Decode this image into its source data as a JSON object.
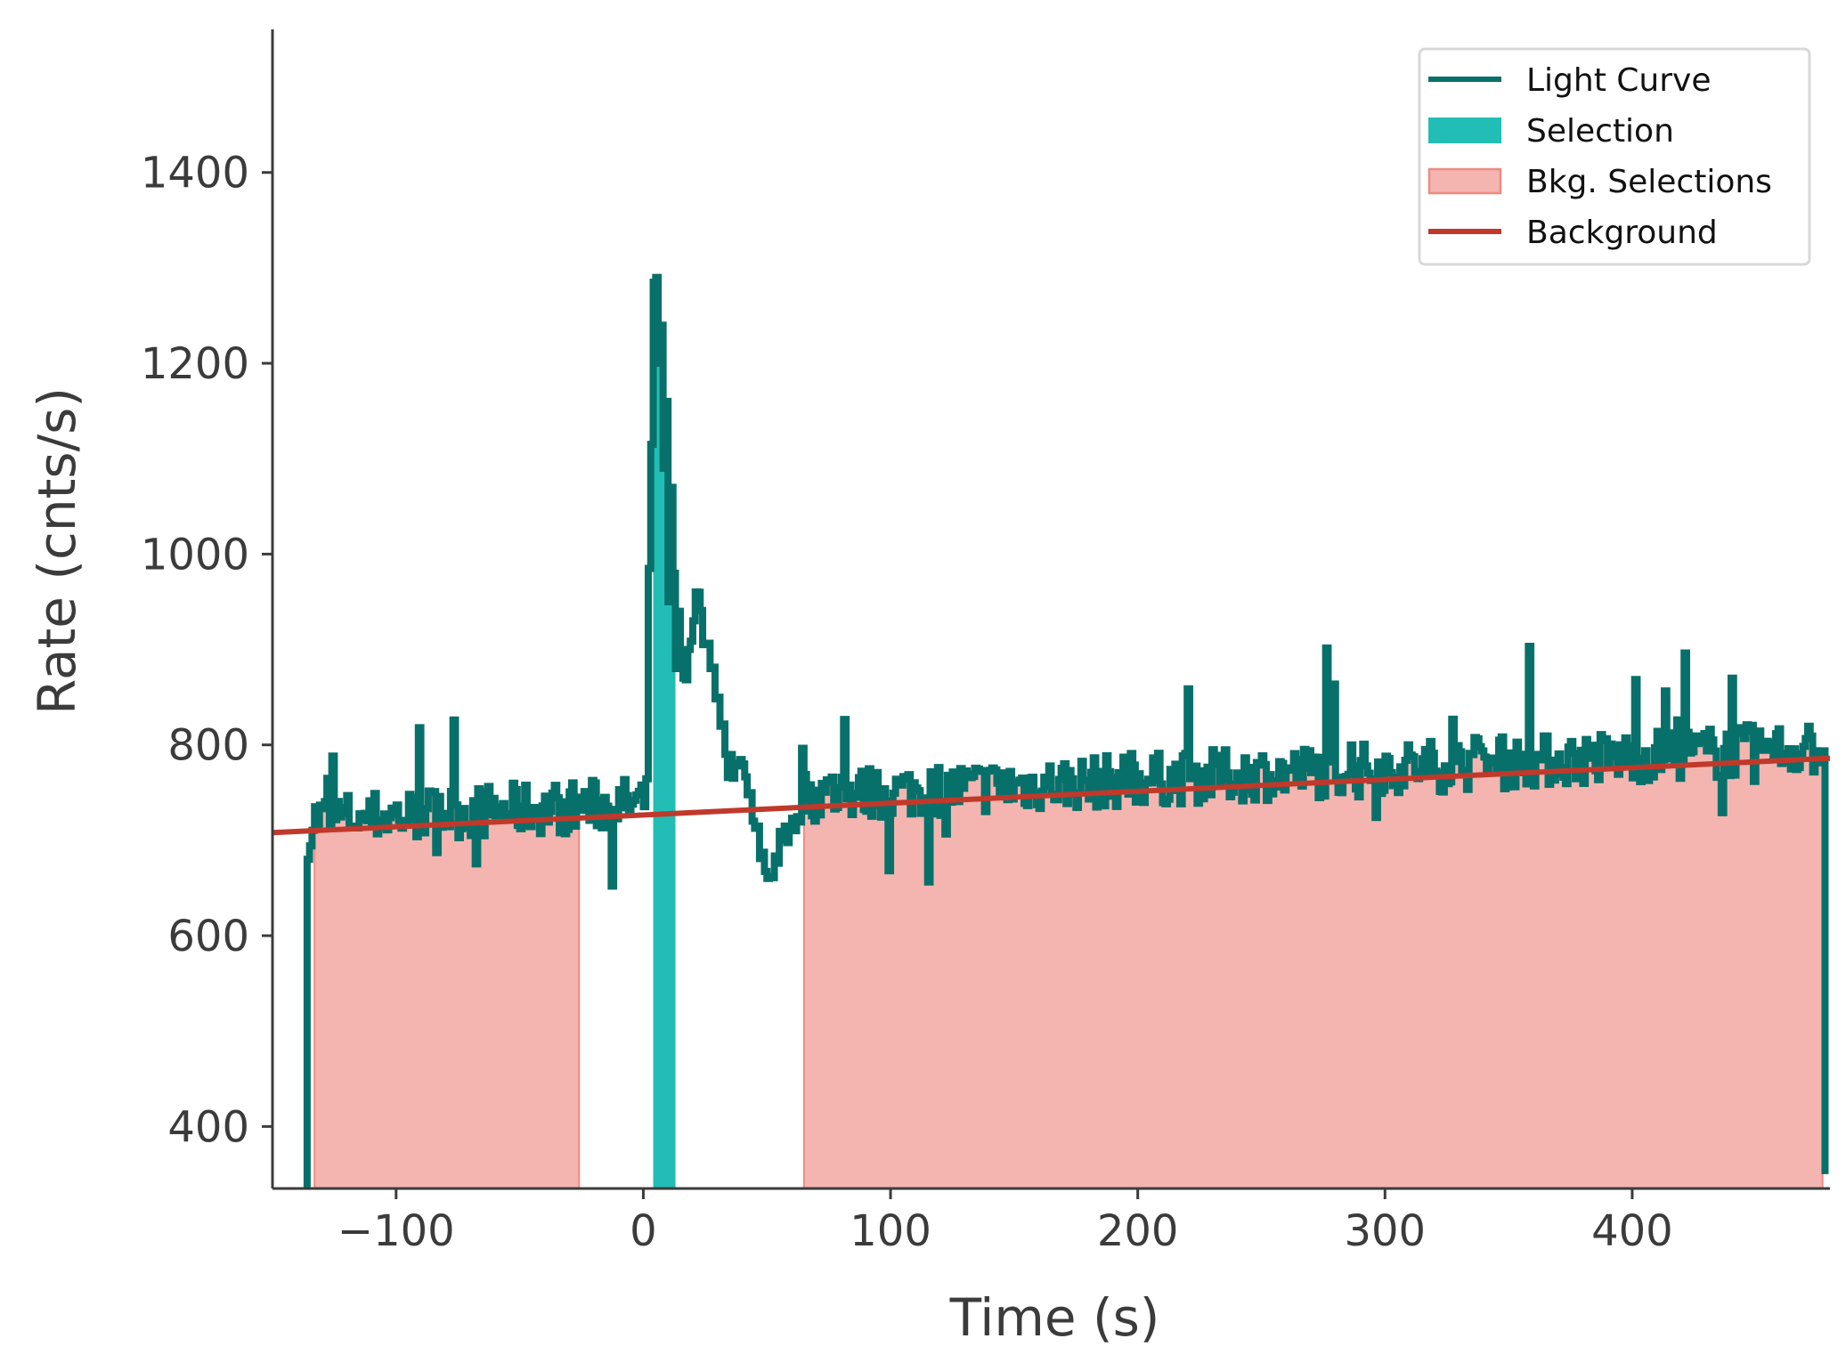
{
  "chart_data": {
    "type": "line",
    "xlabel": "Time (s)",
    "ylabel": "Rate (cnts/s)",
    "xlim": [
      -150,
      480
    ],
    "ylim": [
      335,
      1550
    ],
    "xticks": [
      -100,
      0,
      100,
      200,
      300,
      400
    ],
    "xtick_labels": [
      "−100",
      "0",
      "100",
      "200",
      "300",
      "400"
    ],
    "yticks": [
      400,
      600,
      800,
      1000,
      1200,
      1400
    ],
    "ytick_labels": [
      "400",
      "600",
      "800",
      "1000",
      "1200",
      "1400"
    ],
    "grid": false,
    "legend_position": "top-right",
    "colors": {
      "light_curve": "#08706a",
      "selection": "#22bdb4",
      "bkg_fill": "#f4b5b0",
      "bkg_edge": "#ee8b82",
      "background": "#c0392b",
      "axes": "#3b3b3b"
    },
    "legend": [
      {
        "key": "light_curve",
        "label": "Light Curve"
      },
      {
        "key": "selection",
        "label": "Selection"
      },
      {
        "key": "bkg",
        "label": "Bkg. Selections"
      },
      {
        "key": "background",
        "label": "Background"
      }
    ],
    "background_fit": {
      "t": [
        -150,
        480
      ],
      "rate": [
        708,
        786
      ]
    },
    "selection_interval": [
      4,
      13
    ],
    "bkg_intervals": [
      [
        -133,
        -26
      ],
      [
        65,
        477
      ]
    ],
    "light_curve": {
      "start": -136,
      "bin": 1.0,
      "end_drop": 350,
      "baseline_start": 722,
      "baseline_slope": 0.123,
      "amp_small": 28,
      "amp_large": 95,
      "spike_probability": 0.06,
      "seed": 7,
      "features": [
        {
          "t": -136,
          "rate": 680
        },
        {
          "t": -128,
          "rate": 765
        },
        {
          "t": -91,
          "rate": 818
        },
        {
          "t": 2,
          "rate": 985
        },
        {
          "t": 3,
          "rate": 1115
        },
        {
          "t": 4,
          "rate": 1285
        },
        {
          "t": 5,
          "rate": 1290
        },
        {
          "t": 6,
          "rate": 1200
        },
        {
          "t": 7,
          "rate": 1240
        },
        {
          "t": 8,
          "rate": 1090
        },
        {
          "t": 9,
          "rate": 1160
        },
        {
          "t": 10,
          "rate": 950
        },
        {
          "t": 11,
          "rate": 1070
        },
        {
          "t": 12,
          "rate": 980
        },
        {
          "t": 13,
          "rate": 880
        },
        {
          "t": 14,
          "rate": 940
        },
        {
          "t": 16,
          "rate": 870
        },
        {
          "t": 18,
          "rate": 900
        },
        {
          "t": 20,
          "rate": 930
        },
        {
          "t": 22,
          "rate": 960
        },
        {
          "t": 24,
          "rate": 905
        },
        {
          "t": 27,
          "rate": 880
        },
        {
          "t": 30,
          "rate": 850
        },
        {
          "t": 33,
          "rate": 790
        },
        {
          "t": 36,
          "rate": 765
        },
        {
          "t": 40,
          "rate": 780
        },
        {
          "t": 44,
          "rate": 720
        },
        {
          "t": 50,
          "rate": 660
        },
        {
          "t": 56,
          "rate": 700
        },
        {
          "t": 61,
          "rate": 710
        },
        {
          "t": 440,
          "rate": 870
        }
      ]
    }
  }
}
